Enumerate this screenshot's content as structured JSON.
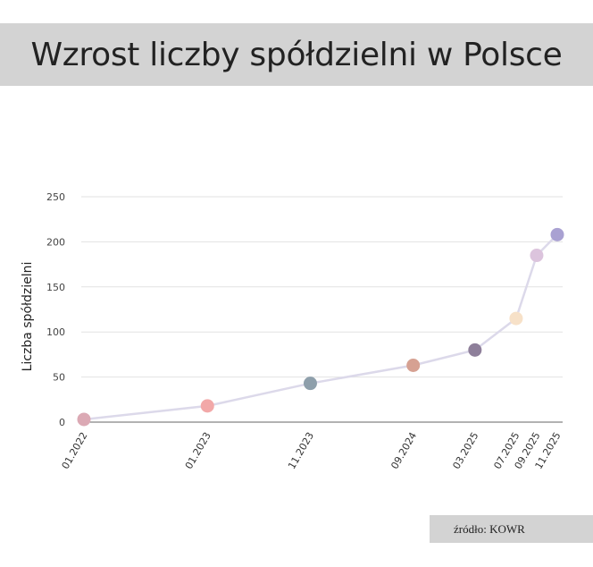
{
  "header": {
    "title": "Wzrost liczby spółdzielni w Polsce"
  },
  "source": {
    "text": "źródło: KOWR"
  },
  "chart_data": {
    "type": "line",
    "title": "Wzrost liczby spółdzielni w Polsce",
    "xlabel": "",
    "ylabel": "Liczba spółdzielni",
    "ylim": [
      0,
      250
    ],
    "yticks": [
      0,
      50,
      100,
      150,
      200,
      250
    ],
    "grid": true,
    "x": [
      "2022-01",
      "2023-01",
      "2023-11",
      "2024-09",
      "2025-03",
      "2025-07",
      "2025-09",
      "2025-11"
    ],
    "x_tick_labels": [
      "01.2022",
      "01.2023",
      "11.2023",
      "09.2024",
      "03.2025",
      "07.2025",
      "09.2025",
      "11.2025"
    ],
    "values": [
      3,
      18,
      43,
      63,
      80,
      115,
      185,
      208
    ],
    "line_color": "#dcd9ea",
    "point_colors": [
      "#dba9b4",
      "#f2a8a8",
      "#8e9fab",
      "#d6a192",
      "#8e7f9a",
      "#f7e1c8",
      "#dcc4dd",
      "#a9a1d2"
    ],
    "axis_color": "#666666",
    "grid_color": "#e2e2e2"
  }
}
